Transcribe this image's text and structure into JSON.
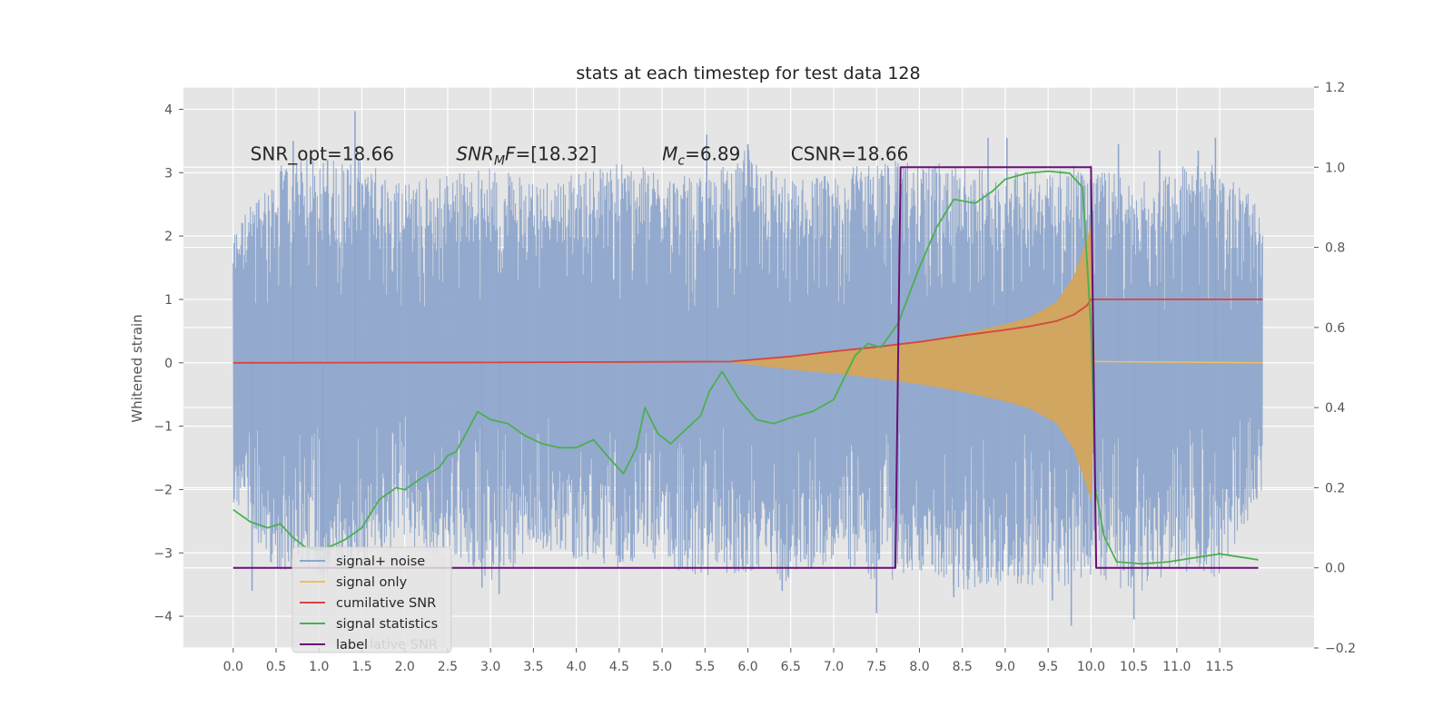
{
  "chart_data": {
    "type": "line",
    "title": "stats at each timestep for test data 128",
    "xlabel": "",
    "ylabel": "Whitened strain",
    "y2label": "",
    "xlim": [
      -0.58,
      12.6
    ],
    "ylim": [
      -4.5,
      4.35
    ],
    "y2lim": [
      -0.2,
      1.2
    ],
    "grid": true,
    "legend_position": "lower-left",
    "x_ticks": [
      "0.0",
      "0.5",
      "1.0",
      "1.5",
      "2.0",
      "2.5",
      "3.0",
      "3.5",
      "4.0",
      "4.5",
      "5.0",
      "5.5",
      "6.0",
      "6.5",
      "7.0",
      "7.5",
      "8.0",
      "8.5",
      "9.0",
      "9.5",
      "10.0",
      "10.5",
      "11.0",
      "11.5"
    ],
    "y_ticks": [
      "−4",
      "−3",
      "−2",
      "−1",
      "0",
      "1",
      "2",
      "3",
      "4"
    ],
    "y2_ticks": [
      "−0.2",
      "0.0",
      "0.2",
      "0.4",
      "0.6",
      "0.8",
      "1.0",
      "1.2"
    ],
    "annotations": [
      {
        "parts": [
          {
            "text": "SNR_opt=18.66",
            "style": "normal"
          }
        ],
        "x": 0.2,
        "y": 3.2
      },
      {
        "parts": [
          {
            "text": "SNR",
            "style": "italic"
          },
          {
            "text": "M",
            "style": "italic-sub"
          },
          {
            "text": "F",
            "style": "italic"
          },
          {
            "text": "=[18.32]",
            "style": "normal"
          }
        ],
        "x": 2.6,
        "y": 3.2
      },
      {
        "parts": [
          {
            "text": "M",
            "style": "italic"
          },
          {
            "text": "c",
            "style": "italic-sub"
          },
          {
            "text": "=6.89",
            "style": "normal"
          }
        ],
        "x": 5.0,
        "y": 3.2
      },
      {
        "parts": [
          {
            "text": "CSNR=18.66",
            "style": "normal"
          }
        ],
        "x": 6.5,
        "y": 3.2
      }
    ],
    "legend": [
      {
        "label": "signal+ noise",
        "color": "#8EA6CC"
      },
      {
        "label": "signal only",
        "color": "#EFC15E"
      },
      {
        "label": "cumilative SNR",
        "color": "#D64541"
      },
      {
        "label": "signal statistics",
        "color": "#4CAF50"
      },
      {
        "label": "label",
        "color": "#6A0F76"
      }
    ],
    "legend_ghost_text": "lative SNR",
    "series": [
      {
        "name": "signal+ noise",
        "axis": "left",
        "color": "#8EA6CC",
        "x_range": [
          0.0,
          12.0
        ],
        "envelope_upper": [
          [
            0.0,
            2.1
          ],
          [
            0.5,
            3.1
          ],
          [
            1.0,
            3.3
          ],
          [
            1.5,
            3.2
          ],
          [
            2.0,
            2.9
          ],
          [
            2.5,
            3.0
          ],
          [
            3.0,
            3.1
          ],
          [
            3.5,
            2.9
          ],
          [
            4.0,
            3.0
          ],
          [
            4.5,
            3.2
          ],
          [
            5.0,
            3.0
          ],
          [
            5.5,
            2.9
          ],
          [
            6.0,
            3.4
          ],
          [
            6.5,
            2.9
          ],
          [
            7.0,
            3.0
          ],
          [
            7.5,
            3.2
          ],
          [
            8.0,
            3.2
          ],
          [
            8.5,
            3.1
          ],
          [
            9.0,
            3.0
          ],
          [
            9.5,
            3.1
          ],
          [
            10.0,
            3.2
          ],
          [
            10.5,
            2.8
          ],
          [
            11.0,
            3.1
          ],
          [
            11.5,
            3.2
          ],
          [
            12.0,
            2.4
          ]
        ],
        "envelope_lower": [
          [
            0.0,
            -2.2
          ],
          [
            0.5,
            -3.3
          ],
          [
            1.0,
            -3.4
          ],
          [
            1.5,
            -3.2
          ],
          [
            2.0,
            -2.9
          ],
          [
            2.5,
            -3.1
          ],
          [
            3.0,
            -3.5
          ],
          [
            3.5,
            -3.0
          ],
          [
            4.0,
            -3.1
          ],
          [
            4.5,
            -3.3
          ],
          [
            5.0,
            -3.2
          ],
          [
            5.5,
            -3.4
          ],
          [
            6.0,
            -3.3
          ],
          [
            6.5,
            -3.5
          ],
          [
            7.0,
            -3.1
          ],
          [
            7.5,
            -3.5
          ],
          [
            8.0,
            -3.3
          ],
          [
            8.5,
            -3.6
          ],
          [
            9.0,
            -3.5
          ],
          [
            9.5,
            -3.6
          ],
          [
            10.0,
            -3.4
          ],
          [
            10.5,
            -3.7
          ],
          [
            11.0,
            -3.3
          ],
          [
            11.5,
            -3.4
          ],
          [
            12.0,
            -2.0
          ]
        ],
        "spikes": [
          [
            1.42,
            3.97
          ],
          [
            0.7,
            3.5
          ],
          [
            1.1,
            3.2
          ],
          [
            6.0,
            3.45
          ],
          [
            5.52,
            3.6
          ],
          [
            8.8,
            3.55
          ],
          [
            9.02,
            3.55
          ],
          [
            10.32,
            3.45
          ],
          [
            10.8,
            3.35
          ],
          [
            11.25,
            3.35
          ],
          [
            11.45,
            3.55
          ],
          [
            9.77,
            -4.15
          ],
          [
            7.5,
            -3.95
          ],
          [
            10.5,
            -4.05
          ],
          [
            6.4,
            -3.6
          ],
          [
            2.9,
            -3.55
          ],
          [
            3.1,
            -3.65
          ],
          [
            0.22,
            -3.6
          ],
          [
            1.05,
            -3.4
          ],
          [
            9.55,
            -3.75
          ],
          [
            8.4,
            -3.7
          ]
        ]
      },
      {
        "name": "signal only",
        "axis": "left",
        "color": "#D3A55A",
        "amplitude": [
          [
            5.82,
            0.0
          ],
          [
            6.0,
            0.02
          ],
          [
            6.5,
            0.1
          ],
          [
            7.0,
            0.16
          ],
          [
            7.5,
            0.24
          ],
          [
            8.0,
            0.33
          ],
          [
            8.5,
            0.45
          ],
          [
            9.0,
            0.6
          ],
          [
            9.3,
            0.72
          ],
          [
            9.6,
            0.95
          ],
          [
            9.8,
            1.35
          ],
          [
            9.92,
            1.8
          ],
          [
            10.0,
            2.15
          ],
          [
            10.04,
            0.02
          ],
          [
            12.0,
            0.0
          ]
        ]
      },
      {
        "name": "cumilative SNR",
        "axis": "left",
        "color": "#D64541",
        "points": [
          [
            0.0,
            0.0
          ],
          [
            3.0,
            0.005
          ],
          [
            5.8,
            0.02
          ],
          [
            6.5,
            0.1
          ],
          [
            7.0,
            0.18
          ],
          [
            7.5,
            0.25
          ],
          [
            8.0,
            0.33
          ],
          [
            8.5,
            0.43
          ],
          [
            9.0,
            0.52
          ],
          [
            9.3,
            0.58
          ],
          [
            9.6,
            0.66
          ],
          [
            9.8,
            0.76
          ],
          [
            9.95,
            0.9
          ],
          [
            10.0,
            1.0
          ],
          [
            12.0,
            1.0
          ]
        ]
      },
      {
        "name": "signal statistics",
        "axis": "right",
        "color": "#4CAF50",
        "points": [
          [
            0.0,
            0.145
          ],
          [
            0.2,
            0.115
          ],
          [
            0.4,
            0.1
          ],
          [
            0.55,
            0.11
          ],
          [
            0.7,
            0.075
          ],
          [
            0.85,
            0.05
          ],
          [
            1.0,
            0.045
          ],
          [
            1.15,
            0.055
          ],
          [
            1.3,
            0.07
          ],
          [
            1.5,
            0.1
          ],
          [
            1.7,
            0.17
          ],
          [
            1.9,
            0.2
          ],
          [
            2.0,
            0.195
          ],
          [
            2.2,
            0.225
          ],
          [
            2.4,
            0.25
          ],
          [
            2.5,
            0.28
          ],
          [
            2.6,
            0.29
          ],
          [
            2.75,
            0.35
          ],
          [
            2.85,
            0.39
          ],
          [
            3.0,
            0.37
          ],
          [
            3.2,
            0.36
          ],
          [
            3.4,
            0.33
          ],
          [
            3.6,
            0.31
          ],
          [
            3.8,
            0.3
          ],
          [
            4.0,
            0.3
          ],
          [
            4.2,
            0.32
          ],
          [
            4.4,
            0.27
          ],
          [
            4.55,
            0.235
          ],
          [
            4.7,
            0.3
          ],
          [
            4.8,
            0.4
          ],
          [
            4.95,
            0.335
          ],
          [
            5.1,
            0.31
          ],
          [
            5.3,
            0.35
          ],
          [
            5.45,
            0.38
          ],
          [
            5.55,
            0.44
          ],
          [
            5.7,
            0.49
          ],
          [
            5.9,
            0.42
          ],
          [
            6.1,
            0.37
          ],
          [
            6.3,
            0.36
          ],
          [
            6.5,
            0.375
          ],
          [
            6.75,
            0.39
          ],
          [
            7.0,
            0.42
          ],
          [
            7.25,
            0.53
          ],
          [
            7.4,
            0.56
          ],
          [
            7.55,
            0.55
          ],
          [
            7.75,
            0.61
          ],
          [
            8.0,
            0.75
          ],
          [
            8.2,
            0.85
          ],
          [
            8.4,
            0.92
          ],
          [
            8.65,
            0.91
          ],
          [
            8.85,
            0.94
          ],
          [
            9.0,
            0.97
          ],
          [
            9.25,
            0.985
          ],
          [
            9.5,
            0.99
          ],
          [
            9.75,
            0.985
          ],
          [
            9.9,
            0.95
          ],
          [
            10.0,
            0.6
          ],
          [
            10.05,
            0.2
          ],
          [
            10.15,
            0.08
          ],
          [
            10.3,
            0.015
          ],
          [
            10.6,
            0.01
          ],
          [
            10.9,
            0.015
          ],
          [
            11.2,
            0.025
          ],
          [
            11.5,
            0.035
          ],
          [
            11.8,
            0.025
          ],
          [
            11.95,
            0.02
          ]
        ]
      },
      {
        "name": "label",
        "axis": "right",
        "color": "#6A0F76",
        "points": [
          [
            0.0,
            0.0
          ],
          [
            7.72,
            0.0
          ],
          [
            7.78,
            1.0
          ],
          [
            10.0,
            1.0
          ],
          [
            10.06,
            0.0
          ],
          [
            11.95,
            0.0
          ]
        ]
      }
    ]
  }
}
